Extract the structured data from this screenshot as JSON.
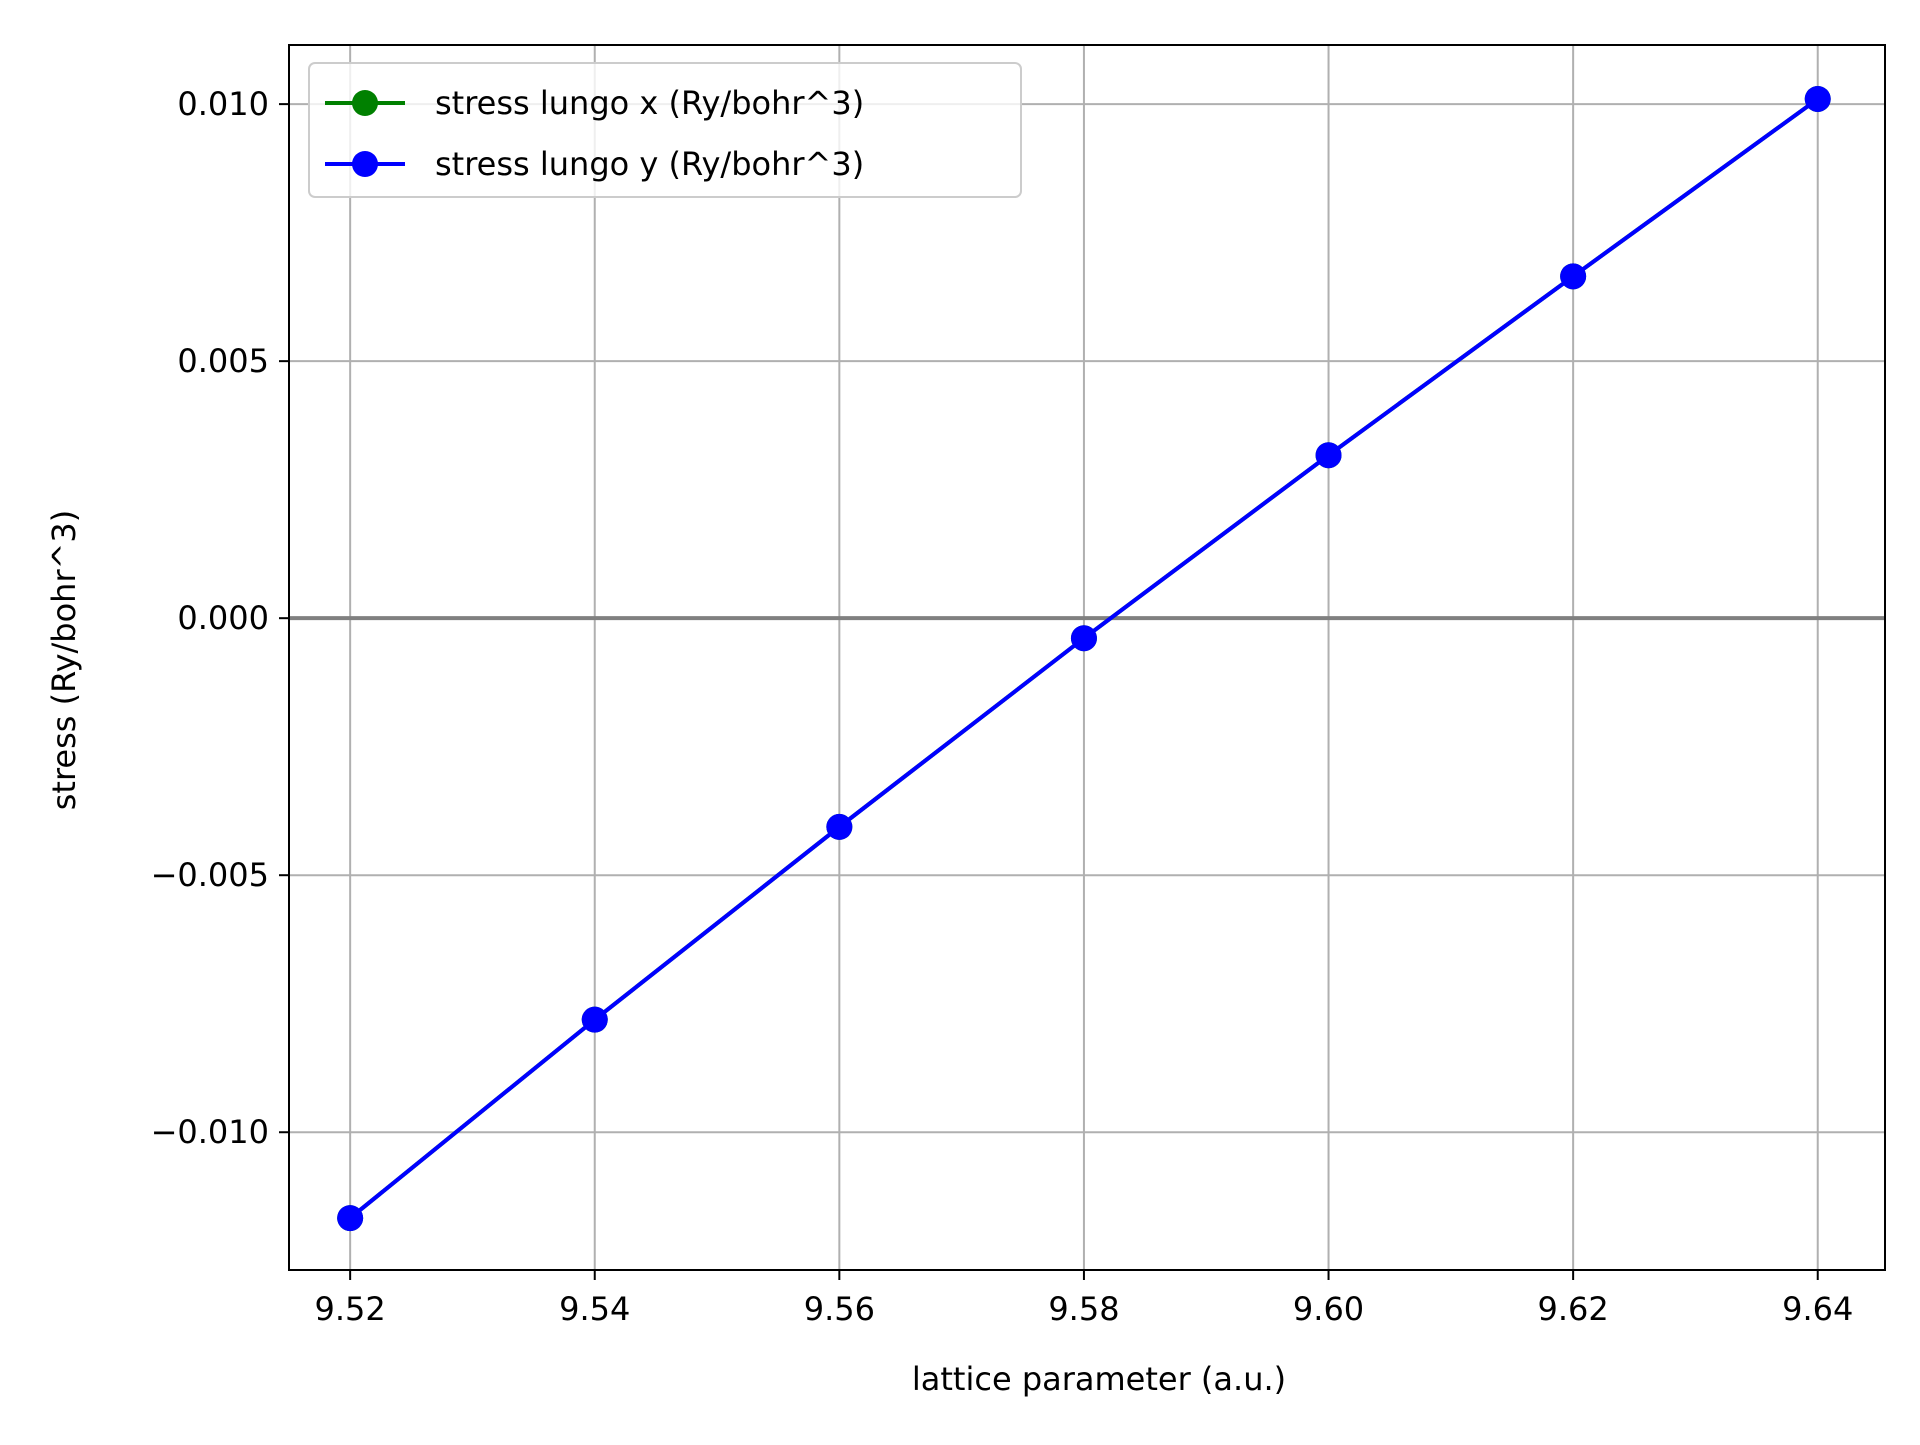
{
  "chart_data": {
    "type": "line",
    "title": "",
    "xlabel": "lattice parameter (a.u.)",
    "ylabel": "stress (Ry/bohr^3)",
    "xlim": [
      9.515,
      9.6455
    ],
    "ylim": [
      -0.01268,
      0.01115
    ],
    "xticks": [
      9.52,
      9.54,
      9.56,
      9.58,
      9.6,
      9.62,
      9.64
    ],
    "xtick_labels": [
      "9.52",
      "9.54",
      "9.56",
      "9.58",
      "9.60",
      "9.62",
      "9.64"
    ],
    "yticks": [
      -0.01,
      -0.005,
      0.0,
      0.005,
      0.01
    ],
    "ytick_labels": [
      "−0.010",
      "−0.005",
      "0.000",
      "0.005",
      "0.010"
    ],
    "grid": true,
    "reference_line_y": 0,
    "legend_position": "upper-left",
    "x": [
      9.52,
      9.54,
      9.56,
      9.58,
      9.6,
      9.62,
      9.64
    ],
    "series": [
      {
        "name": "stress lungo x (Ry/bohr^3)",
        "color": "#008000",
        "values": [
          -0.01167,
          -0.00781,
          -0.00406,
          -0.00039,
          0.00317,
          0.00665,
          0.0101
        ]
      },
      {
        "name": "stress lungo y (Ry/bohr^3)",
        "color": "#0000ff",
        "values": [
          -0.01167,
          -0.00781,
          -0.00406,
          -0.00039,
          0.00317,
          0.00665,
          0.0101
        ]
      }
    ],
    "colors": {
      "grid": "#b0b0b0",
      "zero_line": "#808080",
      "axes": "#000000"
    }
  }
}
